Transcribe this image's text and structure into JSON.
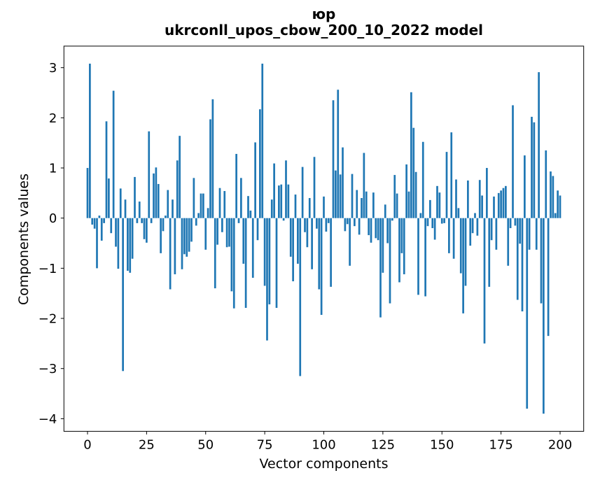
{
  "figure": {
    "title_line1": "юр",
    "title_line2": "ukrconll_upos_cbow_200_10_2022 model"
  },
  "chart_data": {
    "type": "bar",
    "title": "юр\nukrconll_upos_cbow_200_10_2022 model",
    "xlabel": "Vector components",
    "ylabel": "Components values",
    "legend": "none",
    "grid": false,
    "bar_color": "#1f77b4",
    "axis_color": "#000000",
    "x_ticks": [
      0,
      25,
      50,
      75,
      100,
      125,
      150,
      175,
      200
    ],
    "y_ticks": [
      3,
      2,
      1,
      0,
      -1,
      -2,
      -3,
      -4
    ],
    "xlim": [
      -10,
      210
    ],
    "ylim": [
      -4.25,
      3.43
    ],
    "n_components": 201,
    "values": [
      1.0,
      3.08,
      -0.13,
      -0.21,
      -1.0,
      0.05,
      -0.45,
      -0.1,
      1.93,
      0.79,
      -0.3,
      2.54,
      -0.57,
      -1.01,
      0.59,
      -3.05,
      0.37,
      -1.05,
      -1.09,
      -0.81,
      0.82,
      -0.1,
      0.33,
      -0.1,
      -0.42,
      -0.49,
      1.73,
      -0.1,
      0.89,
      1.01,
      0.68,
      -0.7,
      -0.26,
      0.05,
      0.56,
      -1.42,
      0.37,
      -1.12,
      1.15,
      1.64,
      -1.02,
      -0.72,
      -0.77,
      -0.67,
      -0.47,
      0.8,
      -0.15,
      0.1,
      0.49,
      0.49,
      -0.63,
      0.2,
      1.97,
      2.37,
      -1.4,
      -0.53,
      0.6,
      -0.28,
      0.54,
      -0.58,
      -0.57,
      -1.46,
      -1.8,
      1.28,
      -0.1,
      0.8,
      -0.91,
      -1.79,
      0.44,
      0.15,
      -1.19,
      1.51,
      -0.44,
      2.17,
      3.08,
      -1.35,
      -2.44,
      -1.72,
      0.37,
      1.09,
      -1.79,
      0.65,
      0.67,
      -0.05,
      1.15,
      0.67,
      -0.77,
      -1.26,
      0.47,
      -0.91,
      -3.15,
      1.02,
      -0.28,
      -0.58,
      0.4,
      -1.02,
      1.22,
      -0.21,
      -1.42,
      -1.93,
      0.43,
      -0.27,
      -0.1,
      -1.37,
      2.35,
      0.95,
      2.56,
      0.87,
      1.41,
      -0.26,
      -0.12,
      -0.95,
      0.88,
      -0.16,
      0.56,
      -0.33,
      0.4,
      1.3,
      0.53,
      -0.34,
      -0.49,
      0.51,
      -0.4,
      -0.44,
      -1.98,
      -1.09,
      0.27,
      -0.5,
      -1.7,
      -0.05,
      0.86,
      0.49,
      -1.28,
      -0.7,
      -1.12,
      1.07,
      0.53,
      2.51,
      1.8,
      0.92,
      -1.53,
      0.1,
      1.52,
      -1.56,
      -0.16,
      0.36,
      -0.2,
      -0.43,
      0.64,
      0.51,
      -0.11,
      -0.1,
      1.32,
      -0.7,
      1.71,
      -0.81,
      0.77,
      0.2,
      -1.1,
      -1.9,
      -1.35,
      0.75,
      -0.55,
      -0.3,
      0.1,
      -0.35,
      0.76,
      0.45,
      -2.5,
      1.0,
      -1.37,
      -0.44,
      0.43,
      -0.63,
      0.5,
      0.55,
      0.6,
      0.64,
      -0.95,
      -0.2,
      2.25,
      -0.15,
      -1.63,
      -0.51,
      -1.86,
      1.25,
      -3.8,
      -0.63,
      2.02,
      1.91,
      -0.63,
      2.91,
      -1.7,
      -3.9,
      1.35,
      -2.35,
      0.93,
      0.84,
      0.1,
      0.55,
      0.45
    ]
  }
}
